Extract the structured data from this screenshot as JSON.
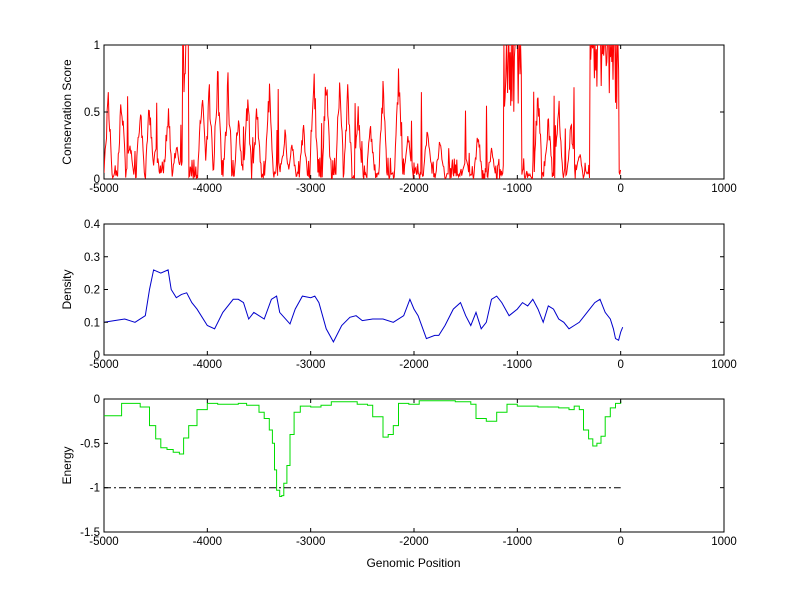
{
  "figure": {
    "xlabel": "Genomic Position"
  },
  "chart_data": [
    {
      "type": "line",
      "ylabel": "Conservation Score",
      "xlim": [
        -5000,
        1000
      ],
      "ylim": [
        0,
        1
      ],
      "xticks": [
        -5000,
        -4000,
        -3000,
        -2000,
        -1000,
        0,
        1000
      ],
      "yticks": [
        0,
        0.5,
        1
      ],
      "grid": false,
      "series": [
        {
          "color": "#ff0000",
          "data_extent": [
            -5000,
            0
          ],
          "pattern": "spiky, noisy conservation trace between 0 and 1",
          "high_regions": [
            [
              -4240,
              -4180,
              1.0
            ],
            [
              -1130,
              -960,
              1.0
            ],
            [
              -300,
              -20,
              1.0
            ]
          ],
          "peaks": [
            [
              -4960,
              0.7
            ],
            [
              -4830,
              0.7
            ],
            [
              -4750,
              0.3
            ],
            [
              -4650,
              0.65
            ],
            [
              -4560,
              0.65
            ],
            [
              -4500,
              0.25
            ],
            [
              -4380,
              0.62
            ],
            [
              -4300,
              0.3
            ],
            [
              -4050,
              0.85
            ],
            [
              -3980,
              0.75
            ],
            [
              -3900,
              0.93
            ],
            [
              -3800,
              0.82
            ],
            [
              -3700,
              0.55
            ],
            [
              -3610,
              0.7
            ],
            [
              -3520,
              0.6
            ],
            [
              -3400,
              0.78
            ],
            [
              -3250,
              0.4
            ],
            [
              -3180,
              0.3
            ],
            [
              -3070,
              0.45
            ],
            [
              -2970,
              0.92
            ],
            [
              -2850,
              0.87
            ],
            [
              -2720,
              0.83
            ],
            [
              -2640,
              0.75
            ],
            [
              -2540,
              0.55
            ],
            [
              -2420,
              0.45
            ],
            [
              -2300,
              0.75
            ],
            [
              -2150,
              0.9
            ],
            [
              -2060,
              0.4
            ],
            [
              -1870,
              0.47
            ],
            [
              -1750,
              0.35
            ],
            [
              -1500,
              0.2
            ],
            [
              -1380,
              0.4
            ],
            [
              -1250,
              0.25
            ],
            [
              -800,
              0.8
            ],
            [
              -700,
              0.5
            ],
            [
              -600,
              0.65
            ],
            [
              -480,
              0.45
            ],
            [
              -400,
              0.25
            ]
          ]
        }
      ]
    },
    {
      "type": "line",
      "ylabel": "Density",
      "xlim": [
        -5000,
        1000
      ],
      "ylim": [
        0,
        0.4
      ],
      "xticks": [
        -5000,
        -4000,
        -3000,
        -2000,
        -1000,
        0,
        1000
      ],
      "yticks": [
        0,
        0.1,
        0.2,
        0.3,
        0.4
      ],
      "grid": false,
      "series": [
        {
          "color": "#0000cc",
          "points": [
            [
              -5000,
              0.1
            ],
            [
              -4900,
              0.105
            ],
            [
              -4800,
              0.11
            ],
            [
              -4700,
              0.1
            ],
            [
              -4600,
              0.12
            ],
            [
              -4560,
              0.2
            ],
            [
              -4520,
              0.26
            ],
            [
              -4450,
              0.25
            ],
            [
              -4380,
              0.26
            ],
            [
              -4350,
              0.2
            ],
            [
              -4300,
              0.175
            ],
            [
              -4250,
              0.185
            ],
            [
              -4200,
              0.19
            ],
            [
              -4150,
              0.16
            ],
            [
              -4100,
              0.14
            ],
            [
              -4000,
              0.09
            ],
            [
              -3930,
              0.08
            ],
            [
              -3850,
              0.13
            ],
            [
              -3750,
              0.17
            ],
            [
              -3700,
              0.17
            ],
            [
              -3650,
              0.16
            ],
            [
              -3600,
              0.11
            ],
            [
              -3550,
              0.13
            ],
            [
              -3450,
              0.11
            ],
            [
              -3380,
              0.17
            ],
            [
              -3330,
              0.18
            ],
            [
              -3300,
              0.13
            ],
            [
              -3200,
              0.095
            ],
            [
              -3150,
              0.14
            ],
            [
              -3080,
              0.18
            ],
            [
              -3000,
              0.175
            ],
            [
              -2960,
              0.18
            ],
            [
              -2920,
              0.16
            ],
            [
              -2850,
              0.08
            ],
            [
              -2780,
              0.04
            ],
            [
              -2700,
              0.09
            ],
            [
              -2620,
              0.115
            ],
            [
              -2560,
              0.12
            ],
            [
              -2500,
              0.105
            ],
            [
              -2400,
              0.11
            ],
            [
              -2300,
              0.11
            ],
            [
              -2200,
              0.1
            ],
            [
              -2100,
              0.12
            ],
            [
              -2040,
              0.17
            ],
            [
              -2000,
              0.14
            ],
            [
              -1960,
              0.12
            ],
            [
              -1880,
              0.05
            ],
            [
              -1800,
              0.06
            ],
            [
              -1760,
              0.06
            ],
            [
              -1700,
              0.09
            ],
            [
              -1620,
              0.14
            ],
            [
              -1550,
              0.16
            ],
            [
              -1500,
              0.12
            ],
            [
              -1450,
              0.09
            ],
            [
              -1400,
              0.13
            ],
            [
              -1350,
              0.08
            ],
            [
              -1300,
              0.1
            ],
            [
              -1250,
              0.17
            ],
            [
              -1200,
              0.18
            ],
            [
              -1150,
              0.16
            ],
            [
              -1080,
              0.12
            ],
            [
              -1000,
              0.14
            ],
            [
              -950,
              0.16
            ],
            [
              -900,
              0.15
            ],
            [
              -850,
              0.17
            ],
            [
              -800,
              0.14
            ],
            [
              -750,
              0.1
            ],
            [
              -700,
              0.15
            ],
            [
              -650,
              0.14
            ],
            [
              -600,
              0.11
            ],
            [
              -550,
              0.1
            ],
            [
              -500,
              0.08
            ],
            [
              -450,
              0.09
            ],
            [
              -400,
              0.1
            ],
            [
              -350,
              0.12
            ],
            [
              -300,
              0.14
            ],
            [
              -250,
              0.16
            ],
            [
              -200,
              0.17
            ],
            [
              -150,
              0.13
            ],
            [
              -100,
              0.11
            ],
            [
              -70,
              0.08
            ],
            [
              -50,
              0.05
            ],
            [
              -20,
              0.045
            ],
            [
              0,
              0.07
            ],
            [
              20,
              0.085
            ]
          ]
        }
      ]
    },
    {
      "type": "line",
      "ylabel": "Energy",
      "xlabel": "Genomic Position",
      "xlim": [
        -5000,
        1000
      ],
      "ylim": [
        -1.5,
        0
      ],
      "xticks": [
        -5000,
        -4000,
        -3000,
        -2000,
        -1000,
        0,
        1000
      ],
      "yticks": [
        -1.5,
        -1,
        -0.5,
        0
      ],
      "grid": false,
      "series": [
        {
          "color": "#00dd00",
          "step": true,
          "points": [
            [
              -5000,
              -0.19
            ],
            [
              -4850,
              -0.19
            ],
            [
              -4830,
              -0.05
            ],
            [
              -4700,
              -0.05
            ],
            [
              -4650,
              -0.09
            ],
            [
              -4600,
              -0.09
            ],
            [
              -4560,
              -0.3
            ],
            [
              -4500,
              -0.45
            ],
            [
              -4450,
              -0.55
            ],
            [
              -4390,
              -0.57
            ],
            [
              -4330,
              -0.6
            ],
            [
              -4270,
              -0.62
            ],
            [
              -4230,
              -0.44
            ],
            [
              -4180,
              -0.3
            ],
            [
              -4100,
              -0.12
            ],
            [
              -4000,
              -0.05
            ],
            [
              -3900,
              -0.06
            ],
            [
              -3700,
              -0.05
            ],
            [
              -3620,
              -0.07
            ],
            [
              -3500,
              -0.15
            ],
            [
              -3450,
              -0.22
            ],
            [
              -3400,
              -0.35
            ],
            [
              -3370,
              -0.5
            ],
            [
              -3350,
              -0.8
            ],
            [
              -3330,
              -1.03
            ],
            [
              -3300,
              -1.1
            ],
            [
              -3280,
              -1.09
            ],
            [
              -3260,
              -0.95
            ],
            [
              -3230,
              -0.75
            ],
            [
              -3200,
              -0.4
            ],
            [
              -3160,
              -0.15
            ],
            [
              -3100,
              -0.08
            ],
            [
              -3000,
              -0.09
            ],
            [
              -2900,
              -0.07
            ],
            [
              -2800,
              -0.03
            ],
            [
              -2700,
              -0.03
            ],
            [
              -2550,
              -0.06
            ],
            [
              -2450,
              -0.07
            ],
            [
              -2400,
              -0.2
            ],
            [
              -2300,
              -0.43
            ],
            [
              -2250,
              -0.4
            ],
            [
              -2200,
              -0.3
            ],
            [
              -2150,
              -0.05
            ],
            [
              -2050,
              -0.06
            ],
            [
              -1950,
              -0.02
            ],
            [
              -1800,
              -0.02
            ],
            [
              -1600,
              -0.03
            ],
            [
              -1450,
              -0.06
            ],
            [
              -1400,
              -0.22
            ],
            [
              -1300,
              -0.25
            ],
            [
              -1200,
              -0.15
            ],
            [
              -1100,
              -0.06
            ],
            [
              -1000,
              -0.08
            ],
            [
              -800,
              -0.09
            ],
            [
              -600,
              -0.1
            ],
            [
              -500,
              -0.12
            ],
            [
              -450,
              -0.08
            ],
            [
              -400,
              -0.12
            ],
            [
              -360,
              -0.35
            ],
            [
              -310,
              -0.45
            ],
            [
              -270,
              -0.53
            ],
            [
              -230,
              -0.5
            ],
            [
              -190,
              -0.42
            ],
            [
              -150,
              -0.2
            ],
            [
              -100,
              -0.1
            ],
            [
              -50,
              -0.05
            ],
            [
              0,
              -0.02
            ]
          ]
        },
        {
          "color": "#000000",
          "style": "dash-dot",
          "points": [
            [
              -5000,
              -1
            ],
            [
              0,
              -1
            ]
          ]
        }
      ]
    }
  ]
}
